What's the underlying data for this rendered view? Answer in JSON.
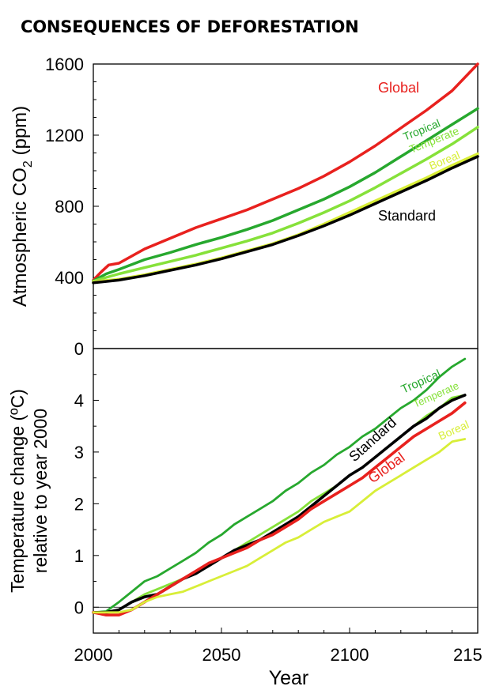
{
  "title": "CONSEQUENCES OF DEFORESTATION",
  "chart_data": [
    {
      "type": "line",
      "xlim": [
        2000,
        2150
      ],
      "ylim": [
        0,
        1600
      ],
      "yticks": [
        "0",
        "400",
        "800",
        "1200",
        "1600"
      ],
      "ylabel_main": "Atmospheric CO",
      "ylabel_sub": "2",
      "ylabel_unit": " (ppm)",
      "series": [
        {
          "name": "Global",
          "color": "#e8211e",
          "x": [
            2000,
            2003,
            2006,
            2010,
            2015,
            2020,
            2030,
            2040,
            2050,
            2060,
            2070,
            2080,
            2090,
            2100,
            2110,
            2120,
            2130,
            2140,
            2150
          ],
          "y": [
            385,
            430,
            470,
            480,
            520,
            560,
            620,
            680,
            730,
            780,
            840,
            900,
            970,
            1050,
            1140,
            1240,
            1340,
            1450,
            1600
          ]
        },
        {
          "name": "Tropical",
          "color": "#27a82e",
          "x": [
            2000,
            2005,
            2010,
            2020,
            2030,
            2040,
            2050,
            2060,
            2070,
            2080,
            2090,
            2100,
            2110,
            2120,
            2130,
            2140,
            2150
          ],
          "y": [
            380,
            420,
            445,
            500,
            540,
            585,
            625,
            670,
            720,
            780,
            840,
            910,
            990,
            1080,
            1170,
            1260,
            1350
          ]
        },
        {
          "name": "Temperate",
          "color": "#86e13a",
          "x": [
            2000,
            2005,
            2010,
            2020,
            2030,
            2040,
            2050,
            2060,
            2070,
            2080,
            2090,
            2100,
            2110,
            2120,
            2130,
            2140,
            2150
          ],
          "y": [
            378,
            400,
            420,
            455,
            490,
            525,
            565,
            605,
            650,
            705,
            765,
            830,
            905,
            985,
            1065,
            1150,
            1245
          ]
        },
        {
          "name": "Boreal",
          "color": "#d8ee38",
          "x": [
            2000,
            2010,
            2020,
            2030,
            2040,
            2050,
            2060,
            2070,
            2080,
            2090,
            2100,
            2110,
            2120,
            2130,
            2140,
            2150
          ],
          "y": [
            375,
            390,
            415,
            445,
            475,
            510,
            550,
            590,
            640,
            700,
            765,
            830,
            895,
            960,
            1030,
            1095
          ]
        },
        {
          "name": "Standard",
          "color": "#000000",
          "x": [
            2000,
            2010,
            2020,
            2030,
            2040,
            2050,
            2060,
            2070,
            2080,
            2090,
            2100,
            2110,
            2120,
            2130,
            2140,
            2150
          ],
          "y": [
            370,
            385,
            410,
            440,
            470,
            505,
            545,
            585,
            635,
            690,
            750,
            815,
            880,
            945,
            1015,
            1080
          ]
        }
      ]
    },
    {
      "type": "line",
      "xlim": [
        2000,
        2150
      ],
      "xticks": [
        "2000",
        "2050",
        "2100",
        "215"
      ],
      "ylim": [
        -0.5,
        5
      ],
      "yticks": [
        "0",
        "1",
        "2",
        "3",
        "4"
      ],
      "xlabel": "Year",
      "ylabel_line1": "Temperature change (ºC)",
      "ylabel_line2": "relative to year 2000",
      "series": [
        {
          "name": "Tropical",
          "color": "#27a82e",
          "x": [
            2000,
            2005,
            2010,
            2015,
            2020,
            2025,
            2030,
            2035,
            2040,
            2045,
            2050,
            2055,
            2060,
            2065,
            2070,
            2075,
            2080,
            2085,
            2090,
            2095,
            2100,
            2105,
            2110,
            2115,
            2120,
            2125,
            2130,
            2135,
            2140,
            2145
          ],
          "y": [
            -0.1,
            -0.08,
            0.1,
            0.3,
            0.5,
            0.6,
            0.75,
            0.9,
            1.05,
            1.25,
            1.4,
            1.6,
            1.75,
            1.9,
            2.05,
            2.25,
            2.4,
            2.6,
            2.75,
            2.95,
            3.1,
            3.3,
            3.45,
            3.65,
            3.85,
            4.0,
            4.2,
            4.45,
            4.65,
            4.8
          ]
        },
        {
          "name": "Temperate",
          "color": "#86e13a",
          "x": [
            2000,
            2005,
            2010,
            2015,
            2020,
            2025,
            2030,
            2035,
            2040,
            2045,
            2050,
            2055,
            2060,
            2065,
            2070,
            2075,
            2080,
            2085,
            2090,
            2095,
            2100,
            2105,
            2110,
            2115,
            2120,
            2125,
            2130,
            2135,
            2140,
            2145
          ],
          "y": [
            -0.1,
            -0.12,
            -0.05,
            0.1,
            0.25,
            0.35,
            0.45,
            0.55,
            0.7,
            0.85,
            0.95,
            1.1,
            1.25,
            1.4,
            1.55,
            1.7,
            1.85,
            2.05,
            2.2,
            2.35,
            2.55,
            2.7,
            2.9,
            3.1,
            3.3,
            3.5,
            3.7,
            3.85,
            4.05,
            4.1
          ]
        },
        {
          "name": "Standard",
          "color": "#000000",
          "x": [
            2000,
            2005,
            2010,
            2015,
            2020,
            2025,
            2030,
            2035,
            2040,
            2045,
            2050,
            2055,
            2060,
            2065,
            2070,
            2075,
            2080,
            2085,
            2090,
            2095,
            2100,
            2105,
            2110,
            2115,
            2120,
            2125,
            2130,
            2135,
            2140,
            2145
          ],
          "y": [
            -0.1,
            -0.1,
            -0.05,
            0.1,
            0.2,
            0.25,
            0.4,
            0.55,
            0.65,
            0.8,
            0.95,
            1.1,
            1.2,
            1.3,
            1.45,
            1.6,
            1.75,
            1.95,
            2.15,
            2.35,
            2.55,
            2.7,
            2.9,
            3.1,
            3.3,
            3.5,
            3.65,
            3.85,
            4.0,
            4.1
          ]
        },
        {
          "name": "Global",
          "color": "#e8211e",
          "x": [
            2000,
            2005,
            2010,
            2015,
            2020,
            2025,
            2030,
            2035,
            2040,
            2045,
            2050,
            2055,
            2060,
            2065,
            2070,
            2075,
            2080,
            2085,
            2090,
            2095,
            2100,
            2105,
            2110,
            2115,
            2120,
            2125,
            2130,
            2135,
            2140,
            2145
          ],
          "y": [
            -0.1,
            -0.15,
            -0.15,
            -0.05,
            0.1,
            0.25,
            0.4,
            0.55,
            0.7,
            0.85,
            0.95,
            1.05,
            1.15,
            1.3,
            1.4,
            1.55,
            1.7,
            1.9,
            2.05,
            2.2,
            2.35,
            2.5,
            2.7,
            2.9,
            3.1,
            3.3,
            3.45,
            3.6,
            3.75,
            3.95
          ]
        },
        {
          "name": "Boreal",
          "color": "#d8ee38",
          "x": [
            2000,
            2005,
            2010,
            2015,
            2020,
            2025,
            2030,
            2035,
            2040,
            2045,
            2050,
            2055,
            2060,
            2065,
            2070,
            2075,
            2080,
            2085,
            2090,
            2095,
            2100,
            2105,
            2110,
            2115,
            2120,
            2125,
            2130,
            2135,
            2140,
            2145
          ],
          "y": [
            -0.1,
            -0.1,
            -0.1,
            -0.05,
            0.1,
            0.2,
            0.25,
            0.3,
            0.4,
            0.5,
            0.6,
            0.7,
            0.8,
            0.95,
            1.1,
            1.25,
            1.35,
            1.5,
            1.65,
            1.75,
            1.85,
            2.05,
            2.25,
            2.4,
            2.55,
            2.7,
            2.85,
            3.0,
            3.2,
            3.25
          ]
        }
      ]
    }
  ]
}
